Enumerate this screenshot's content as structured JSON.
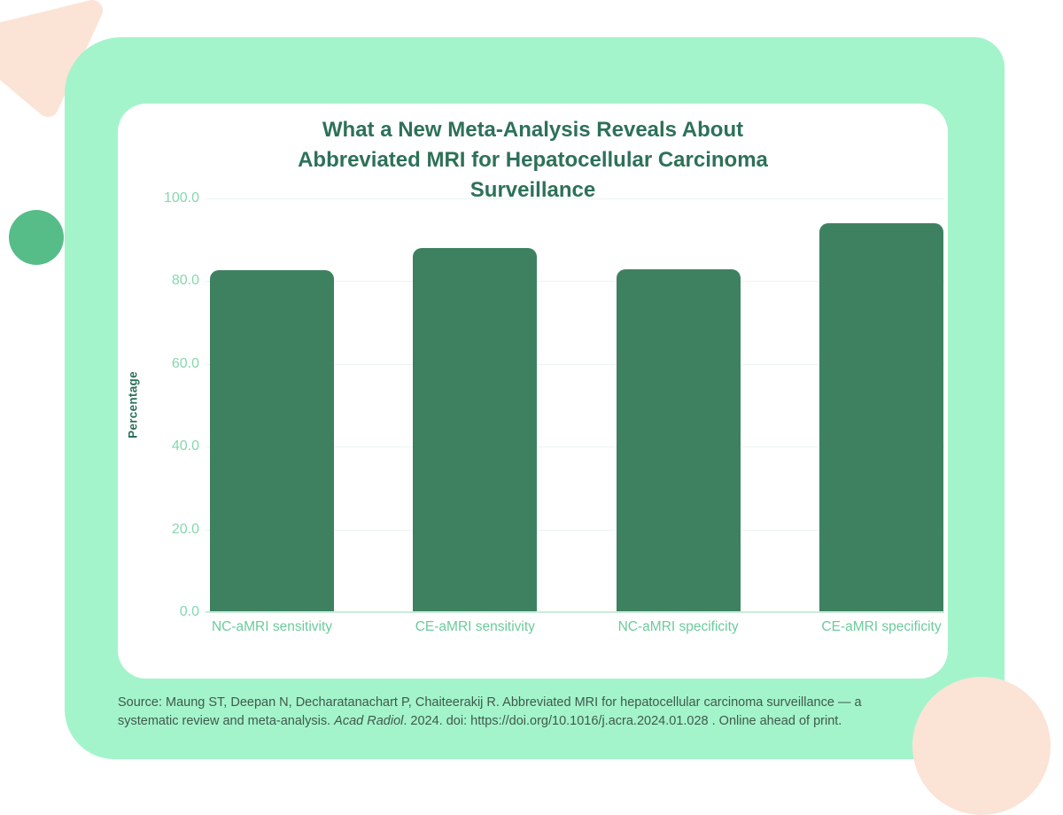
{
  "chart_data": {
    "type": "bar",
    "title": "What a New Meta-Analysis Reveals About Abbreviated MRI for Hepatocellular Carcinoma Surveillance",
    "title_lines": [
      "What a New Meta-Analysis Reveals About",
      "Abbreviated MRI for Hepatocellular Carcinoma",
      "Surveillance"
    ],
    "categories": [
      "NC-aMRI sensitivity",
      "CE-aMRI sensitivity",
      "NC-aMRI specificity",
      "CE-aMRI specificity"
    ],
    "values": [
      82.4,
      87.9,
      82.6,
      93.9
    ],
    "xlabel": "",
    "ylabel": "Percentage",
    "ylim": [
      0,
      100
    ],
    "yticks": [
      100,
      80,
      60,
      40,
      20,
      0
    ],
    "ytick_decimals": 1,
    "grid": true,
    "legend": false,
    "bar_color": "#3e8161"
  },
  "source_note": {
    "prefix": "Source: Maung ST, Deepan N, Decharatanachart P, Chaiteerakij R. Abbreviated MRI for hepatocellular carcinoma surveillance — a systematic review and meta-analysis. ",
    "italic": "Acad Radiol",
    "suffix": ". 2024. doi: https://doi.org/10.1016/j.acra.2024.01.028 . Online ahead of print."
  },
  "colors": {
    "mint_panel": "#a4f4cb",
    "card": "#ffffff",
    "bar": "#3e8161",
    "title_text": "#2d7158",
    "tick_text": "#86d7ae",
    "xlabel_text": "#6bcb9c",
    "source_text": "#3f5a4d",
    "peach_decor": "#fbe3d6",
    "green_circle": "#57bd88"
  }
}
